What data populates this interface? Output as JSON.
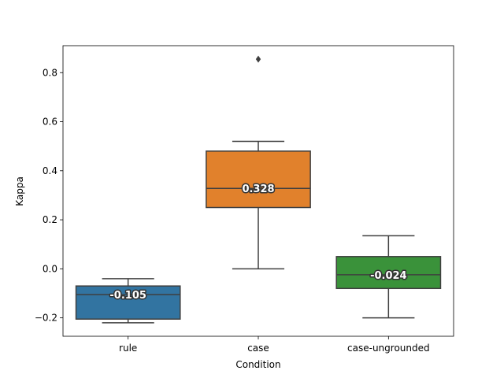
{
  "chart_data": {
    "type": "box",
    "xlabel": "Condition",
    "ylabel": "Kappa",
    "ylim": [
      -0.275,
      0.91
    ],
    "yticks": [
      -0.2,
      0.0,
      0.2,
      0.4,
      0.6,
      0.8
    ],
    "ytick_labels": [
      "−0.2",
      "0.0",
      "0.2",
      "0.4",
      "0.6",
      "0.8"
    ],
    "grid": false,
    "boxes": [
      {
        "category": "rule",
        "color": "#3274a1",
        "whisker_low": -0.22,
        "q1": -0.205,
        "median": -0.105,
        "q3": -0.07,
        "whisker_high": -0.04,
        "outliers": [],
        "median_label": "-0.105"
      },
      {
        "category": "case",
        "color": "#e1812c",
        "whisker_low": 0.0,
        "q1": 0.25,
        "median": 0.328,
        "q3": 0.48,
        "whisker_high": 0.52,
        "outliers": [
          0.855
        ],
        "median_label": "0.328"
      },
      {
        "category": "case-ungrounded",
        "color": "#3a923a",
        "whisker_low": -0.2,
        "q1": -0.08,
        "median": -0.024,
        "q3": 0.05,
        "whisker_high": 0.135,
        "outliers": [],
        "median_label": "-0.024"
      }
    ]
  }
}
